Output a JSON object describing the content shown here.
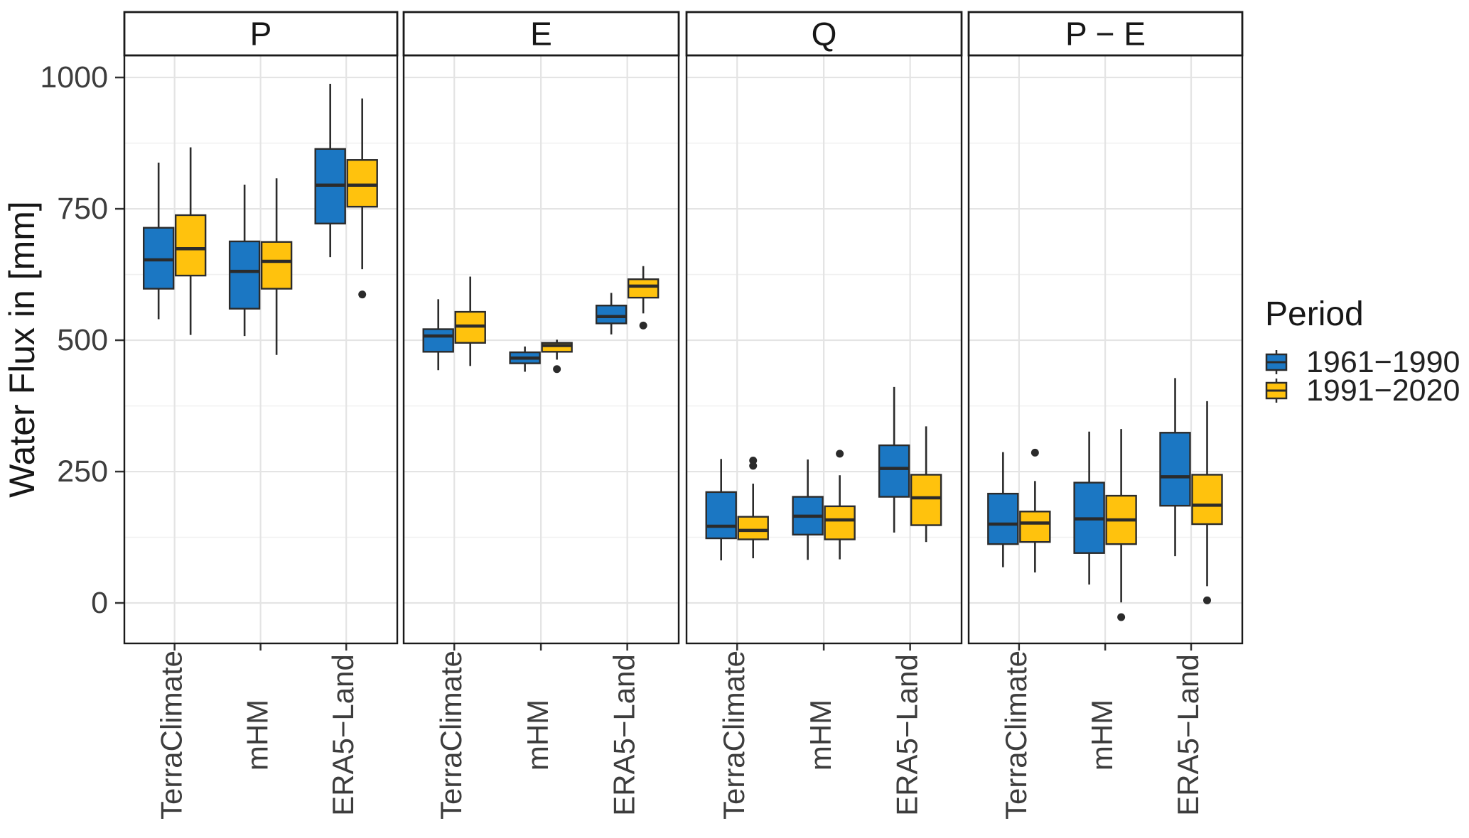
{
  "y_axis": {
    "title": "Water Flux in [mm]",
    "tick_labels": [
      "0",
      "250",
      "500",
      "750",
      "1000"
    ]
  },
  "legend": {
    "title": "Period",
    "items": [
      {
        "label": "1961−1990",
        "color": "#1B77C3"
      },
      {
        "label": "1991−2020",
        "color": "#FFC20D"
      }
    ]
  },
  "colors": {
    "blue": "#1B77C3",
    "yellow": "#FFC20D",
    "box_stroke": "#2b2b2b",
    "grid_major": "#e4e4e4",
    "grid_minor": "#f1f1f1",
    "panel_border": "#1a1a1a",
    "tick": "#333333"
  },
  "chart_data": {
    "type": "boxplot",
    "title": "",
    "ylabel": "Water Flux in [mm]",
    "xlabel": "",
    "yticks_major": [
      0,
      250,
      500,
      750,
      1000
    ],
    "yticks_minor": [
      125,
      375,
      625,
      875
    ],
    "ylim": [
      -77,
      1042
    ],
    "grid": true,
    "legend_position": "right",
    "categories": [
      "TerraClimate",
      "mHM",
      "ERA5−Land"
    ],
    "series": [
      {
        "name": "1961−1990",
        "color": "#1B77C3"
      },
      {
        "name": "1991−2020",
        "color": "#FFC20D"
      }
    ],
    "facets": [
      {
        "label": "P",
        "categories": [
          {
            "label": "TerraClimate",
            "boxes": [
              {
                "period": "1961−1990",
                "whislo": 540,
                "q1": 598,
                "med": 653,
                "q3": 714,
                "whishi": 838,
                "outliers": []
              },
              {
                "period": "1991−2020",
                "whislo": 510,
                "q1": 623,
                "med": 674,
                "q3": 738,
                "whishi": 867,
                "outliers": []
              }
            ]
          },
          {
            "label": "mHM",
            "boxes": [
              {
                "period": "1961−1990",
                "whislo": 508,
                "q1": 560,
                "med": 631,
                "q3": 688,
                "whishi": 796,
                "outliers": []
              },
              {
                "period": "1991−2020",
                "whislo": 472,
                "q1": 598,
                "med": 650,
                "q3": 687,
                "whishi": 808,
                "outliers": []
              }
            ]
          },
          {
            "label": "ERA5−Land",
            "boxes": [
              {
                "period": "1961−1990",
                "whislo": 658,
                "q1": 722,
                "med": 795,
                "q3": 864,
                "whishi": 988,
                "outliers": []
              },
              {
                "period": "1991−2020",
                "whislo": 635,
                "q1": 754,
                "med": 795,
                "q3": 843,
                "whishi": 960,
                "outliers": [
                  587
                ]
              }
            ]
          }
        ]
      },
      {
        "label": "E",
        "categories": [
          {
            "label": "TerraClimate",
            "boxes": [
              {
                "period": "1961−1990",
                "whislo": 443,
                "q1": 478,
                "med": 508,
                "q3": 521,
                "whishi": 578,
                "outliers": []
              },
              {
                "period": "1991−2020",
                "whislo": 451,
                "q1": 495,
                "med": 527,
                "q3": 554,
                "whishi": 621,
                "outliers": []
              }
            ]
          },
          {
            "label": "mHM",
            "boxes": [
              {
                "period": "1961−1990",
                "whislo": 440,
                "q1": 456,
                "med": 466,
                "q3": 477,
                "whishi": 488,
                "outliers": []
              },
              {
                "period": "1991−2020",
                "whislo": 463,
                "q1": 478,
                "med": 490,
                "q3": 495,
                "whishi": 501,
                "outliers": [
                  445
                ]
              }
            ]
          },
          {
            "label": "ERA5−Land",
            "boxes": [
              {
                "period": "1961−1990",
                "whislo": 511,
                "q1": 532,
                "med": 545,
                "q3": 566,
                "whishi": 590,
                "outliers": []
              },
              {
                "period": "1991−2020",
                "whislo": 551,
                "q1": 581,
                "med": 603,
                "q3": 616,
                "whishi": 641,
                "outliers": [
                  528
                ]
              }
            ]
          }
        ]
      },
      {
        "label": "Q",
        "categories": [
          {
            "label": "TerraClimate",
            "boxes": [
              {
                "period": "1961−1990",
                "whislo": 81,
                "q1": 123,
                "med": 146,
                "q3": 211,
                "whishi": 274,
                "outliers": []
              },
              {
                "period": "1991−2020",
                "whislo": 85,
                "q1": 121,
                "med": 138,
                "q3": 164,
                "whishi": 227,
                "outliers": [
                  261,
                  271
                ]
              }
            ]
          },
          {
            "label": "mHM",
            "boxes": [
              {
                "period": "1961−1990",
                "whislo": 82,
                "q1": 130,
                "med": 165,
                "q3": 202,
                "whishi": 273,
                "outliers": []
              },
              {
                "period": "1991−2020",
                "whislo": 83,
                "q1": 121,
                "med": 158,
                "q3": 184,
                "whishi": 243,
                "outliers": [
                  284
                ]
              }
            ]
          },
          {
            "label": "ERA5−Land",
            "boxes": [
              {
                "period": "1961−1990",
                "whislo": 134,
                "q1": 202,
                "med": 256,
                "q3": 300,
                "whishi": 411,
                "outliers": []
              },
              {
                "period": "1991−2020",
                "whislo": 116,
                "q1": 148,
                "med": 200,
                "q3": 244,
                "whishi": 336,
                "outliers": []
              }
            ]
          }
        ]
      },
      {
        "label": "P − E",
        "categories": [
          {
            "label": "TerraClimate",
            "boxes": [
              {
                "period": "1961−1990",
                "whislo": 68,
                "q1": 112,
                "med": 150,
                "q3": 208,
                "whishi": 287,
                "outliers": []
              },
              {
                "period": "1991−2020",
                "whislo": 58,
                "q1": 116,
                "med": 152,
                "q3": 174,
                "whishi": 232,
                "outliers": [
                  286
                ]
              }
            ]
          },
          {
            "label": "mHM",
            "boxes": [
              {
                "period": "1961−1990",
                "whislo": 35,
                "q1": 95,
                "med": 160,
                "q3": 229,
                "whishi": 326,
                "outliers": []
              },
              {
                "period": "1991−2020",
                "whislo": 1,
                "q1": 112,
                "med": 158,
                "q3": 204,
                "whishi": 331,
                "outliers": [
                  -27
                ]
              }
            ]
          },
          {
            "label": "ERA5−Land",
            "boxes": [
              {
                "period": "1961−1990",
                "whislo": 89,
                "q1": 185,
                "med": 240,
                "q3": 324,
                "whishi": 428,
                "outliers": []
              },
              {
                "period": "1991−2020",
                "whislo": 32,
                "q1": 150,
                "med": 186,
                "q3": 244,
                "whishi": 384,
                "outliers": [
                  5
                ]
              }
            ]
          }
        ]
      }
    ]
  }
}
